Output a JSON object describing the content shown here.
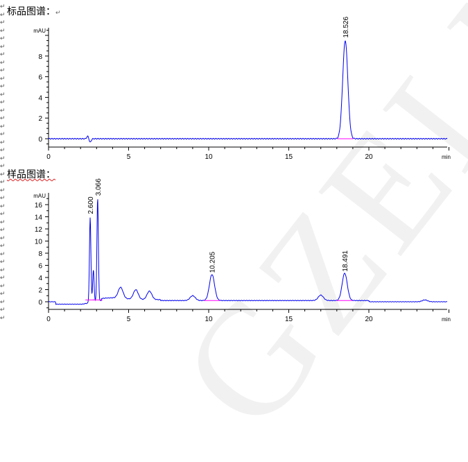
{
  "headings": {
    "standard": "标品图谱：",
    "sample": "样品图谱："
  },
  "return_mark": "↵",
  "watermark": "GZELM",
  "colors": {
    "trace": "#0000ee",
    "baseline": "#ff00ff",
    "axis": "#000000"
  },
  "chart_data": [
    {
      "type": "line",
      "ylabel": "mAU",
      "xlabel": "min",
      "xlim": [
        0,
        25
      ],
      "ylim": [
        -0.8,
        10.5
      ],
      "xticks": [
        0,
        5,
        10,
        15,
        20
      ],
      "yticks": [
        0,
        2,
        4,
        6,
        8
      ],
      "peaks": [
        {
          "rt": 18.526,
          "height": 9.5,
          "label": "18.526"
        }
      ],
      "minor_features": [
        {
          "rt": 2.45,
          "height": 0.25
        },
        {
          "rt": 2.6,
          "height": -0.35
        }
      ],
      "baseline": 0
    },
    {
      "type": "line",
      "ylabel": "mAU",
      "xlabel": "min",
      "xlim": [
        0,
        25
      ],
      "ylim": [
        -1.2,
        17.5
      ],
      "xticks": [
        0,
        5,
        10,
        15,
        20
      ],
      "yticks": [
        0,
        2,
        4,
        6,
        8,
        10,
        12,
        14,
        16
      ],
      "peaks": [
        {
          "rt": 2.6,
          "height": 14,
          "label": "2.600"
        },
        {
          "rt": 2.8,
          "height": 5.3
        },
        {
          "rt": 3.066,
          "height": 17,
          "label": "3.066"
        },
        {
          "rt": 4.5,
          "height": 1.8
        },
        {
          "rt": 5.45,
          "height": 1.6
        },
        {
          "rt": 6.3,
          "height": 1.4
        },
        {
          "rt": 9.0,
          "height": 0.8
        },
        {
          "rt": 10.205,
          "height": 4.3,
          "label": "10.205"
        },
        {
          "rt": 17.0,
          "height": 0.9
        },
        {
          "rt": 18.491,
          "height": 4.5,
          "label": "18.491"
        },
        {
          "rt": 23.5,
          "height": 0.3
        }
      ],
      "baseline": 0
    }
  ]
}
